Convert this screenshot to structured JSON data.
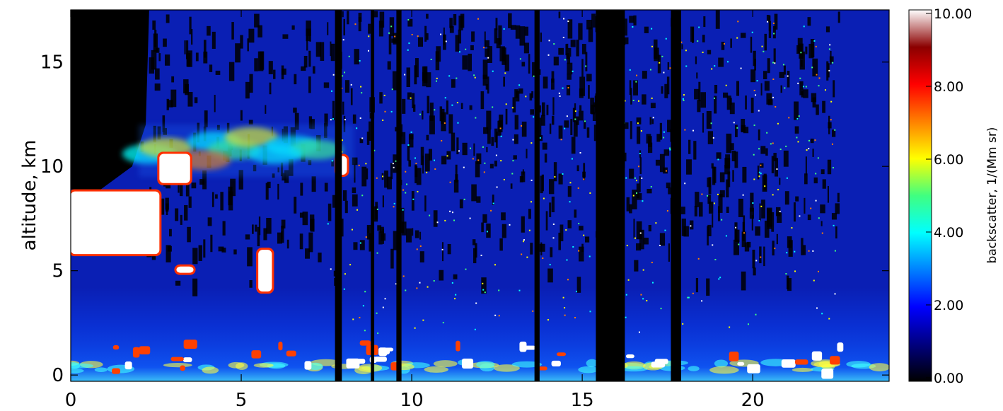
{
  "chart_data": {
    "type": "heatmap",
    "title": "",
    "xlabel": "",
    "ylabel": "altitude, km",
    "xlim": [
      0,
      24
    ],
    "ylim": [
      -0.3,
      17.5
    ],
    "x_ticks": [
      "0",
      "5",
      "10",
      "15",
      "20"
    ],
    "x_tick_values": [
      0,
      5,
      10,
      15,
      20
    ],
    "y_ticks": [
      "0",
      "5",
      "10",
      "15"
    ],
    "y_tick_values": [
      0,
      5,
      10,
      15
    ],
    "colorbar": {
      "label": "backscatter, 1/(Mm sr)",
      "range": [
        0,
        10
      ],
      "ticks": [
        "0.00",
        "2.00",
        "4.00",
        "6.00",
        "8.00",
        "10.00"
      ],
      "tick_values": [
        0,
        2,
        4,
        6,
        8,
        10
      ],
      "colormap": [
        "#000000",
        "#000080",
        "#0000ff",
        "#0080ff",
        "#00ffff",
        "#40ff80",
        "#ffff00",
        "#ff8000",
        "#ff0000",
        "#8b0000",
        "#ffffff"
      ]
    },
    "colors": {
      "background": "#0a1fb4",
      "no_data": "#000000",
      "saturated": "#ffffff"
    },
    "features": {
      "no_data_columns": [
        [
          7.75,
          7.95
        ],
        [
          8.8,
          8.9
        ],
        [
          9.55,
          9.7
        ],
        [
          13.6,
          13.75
        ],
        [
          15.4,
          16.25
        ],
        [
          17.6,
          17.9
        ]
      ],
      "clouds_saturated": [
        {
          "x": [
            0,
            2.6
          ],
          "y": [
            5.8,
            8.8
          ]
        },
        {
          "x": [
            2.6,
            3.5
          ],
          "y": [
            9.2,
            10.6
          ]
        },
        {
          "x": [
            3.1,
            3.6
          ],
          "y": [
            4.9,
            5.2
          ]
        },
        {
          "x": [
            5.5,
            5.9
          ],
          "y": [
            4.0,
            6.0
          ]
        },
        {
          "x": [
            7.8,
            8.1
          ],
          "y": [
            9.6,
            10.5
          ]
        }
      ],
      "cirrus_band": {
        "x": [
          2.0,
          8.3
        ],
        "y": [
          9.5,
          12.0
        ]
      },
      "boundary_layer_top_km": 4.2
    }
  }
}
